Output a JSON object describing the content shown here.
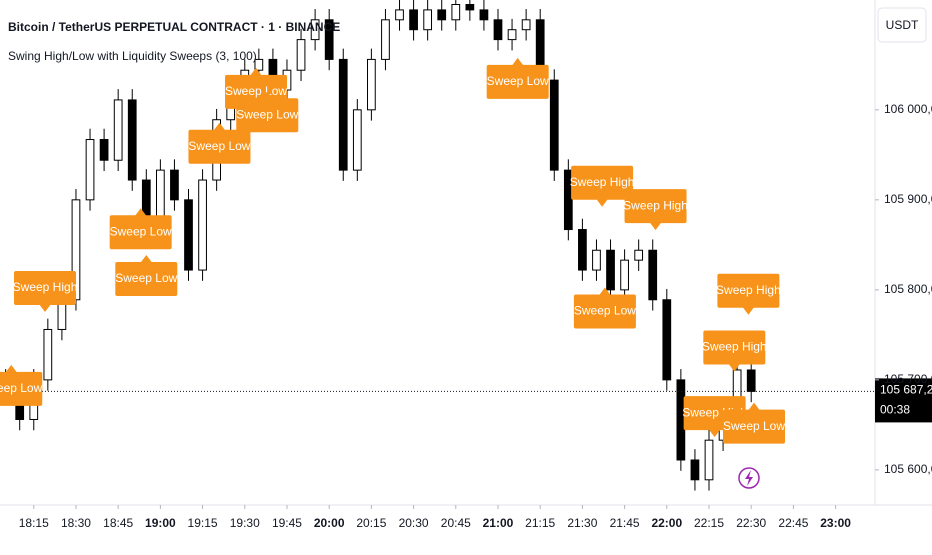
{
  "chart_data": {
    "type": "candlestick",
    "title": "Bitcoin / TetherUS PERPETUAL CONTRACT · 1 · BINANCE",
    "subtitle": "Swing High/Low with Liquidity Sweeps (3, 100)",
    "currency": "USDT",
    "x": [
      "18:05",
      "18:10",
      "18:15",
      "18:20",
      "18:25",
      "18:30",
      "18:35",
      "18:40",
      "18:45",
      "18:50",
      "18:55",
      "19:00",
      "19:05",
      "19:10",
      "19:15",
      "19:20",
      "19:25",
      "19:30",
      "19:35",
      "19:40",
      "19:45",
      "19:50",
      "19:55",
      "20:00",
      "20:05",
      "20:10",
      "20:15",
      "20:20",
      "20:25",
      "20:30",
      "20:35",
      "20:40",
      "20:45",
      "20:50",
      "20:55",
      "21:00",
      "21:05",
      "21:10",
      "21:15",
      "21:20",
      "21:25",
      "21:30",
      "21:35",
      "21:40",
      "21:45",
      "21:50",
      "21:55",
      "22:00",
      "22:05",
      "22:10",
      "22:15",
      "22:20",
      "22:25",
      "22:30"
    ],
    "open": [
      105700,
      105689,
      105656,
      105700,
      105756,
      105789,
      105900,
      105967,
      105944,
      106011,
      105922,
      105867,
      105933,
      105900,
      105822,
      105922,
      105989,
      106022,
      106044,
      106056,
      106022,
      106044,
      106078,
      106100,
      106056,
      105933,
      106000,
      106056,
      106100,
      106111,
      106089,
      106111,
      106100,
      106117,
      106111,
      106100,
      106078,
      106089,
      106100,
      106033,
      105933,
      105867,
      105822,
      105844,
      105800,
      105833,
      105844,
      105789,
      105700,
      105611,
      105589,
      105633,
      105656,
      105711
    ],
    "high": [
      105712,
      105701,
      105712,
      105768,
      105801,
      105912,
      105979,
      105979,
      106023,
      106023,
      105934,
      105945,
      105945,
      105912,
      105934,
      106001,
      106034,
      106056,
      106068,
      106068,
      106056,
      106090,
      106112,
      106112,
      106068,
      106012,
      106068,
      106112,
      106123,
      106123,
      106123,
      106123,
      106129,
      106129,
      106123,
      106112,
      106101,
      106112,
      106112,
      106045,
      105945,
      105879,
      105856,
      105856,
      105845,
      105856,
      105856,
      105801,
      105712,
      105623,
      105645,
      105668,
      105723,
      105723
    ],
    "low": [
      105677,
      105644,
      105644,
      105688,
      105744,
      105777,
      105888,
      105932,
      105932,
      105910,
      105855,
      105855,
      105888,
      105810,
      105810,
      105910,
      105977,
      106010,
      106032,
      106010,
      106010,
      106032,
      106066,
      106044,
      105921,
      105921,
      105988,
      106044,
      106088,
      106077,
      106077,
      106088,
      106088,
      106099,
      106088,
      106066,
      106066,
      106077,
      106021,
      105921,
      105855,
      105810,
      105810,
      105788,
      105788,
      105821,
      105777,
      105688,
      105599,
      105577,
      105577,
      105621,
      105644,
      105675.2
    ],
    "close": [
      105689,
      105656,
      105700,
      105756,
      105789,
      105900,
      105967,
      105944,
      106011,
      105922,
      105867,
      105933,
      105900,
      105822,
      105922,
      105989,
      106022,
      106044,
      106056,
      106022,
      106044,
      106078,
      106100,
      106056,
      105933,
      106000,
      106056,
      106100,
      106111,
      106089,
      106111,
      106100,
      106117,
      106111,
      106100,
      106078,
      106089,
      106100,
      106033,
      105933,
      105867,
      105822,
      105844,
      105800,
      105833,
      105844,
      105789,
      105700,
      105611,
      105589,
      105633,
      105656,
      105711,
      105687.2
    ],
    "up_color": "#ffffff",
    "down_color": "#000000",
    "wick_color": "#000000",
    "xlim": [
      "18:03",
      "23:14"
    ],
    "xticks": [
      "18:15",
      "18:30",
      "18:45",
      "19:00",
      "19:15",
      "19:30",
      "19:45",
      "20:00",
      "20:15",
      "20:30",
      "20:45",
      "21:00",
      "21:15",
      "21:30",
      "21:45",
      "22:00",
      "22:15",
      "22:30",
      "22:45",
      "23:00"
    ],
    "ylim": [
      105561,
      106122
    ],
    "yticks": [
      {
        "value": 105600,
        "label": "105 600,0"
      },
      {
        "value": 105700,
        "label": "105 700,0"
      },
      {
        "value": 105800,
        "label": "105 800,0"
      },
      {
        "value": 105900,
        "label": "105 900,0"
      },
      {
        "value": 106000,
        "label": "106 000,0"
      }
    ],
    "last_price": {
      "value": 105687.2,
      "label": "105 687,2"
    },
    "countdown": "00:38",
    "annotation_color": "#f7931a",
    "annotations": [
      {
        "text": "Sweep Low",
        "x": "18:07",
        "y": 105720
      },
      {
        "text": "Sweep High",
        "x": "18:19",
        "y": 105772
      },
      {
        "text": "Sweep Low",
        "x": "18:53",
        "y": 105894
      },
      {
        "text": "Sweep Low",
        "x": "18:55",
        "y": 105842
      },
      {
        "text": "Sweep Low",
        "x": "19:21",
        "y": 105989
      },
      {
        "text": "Sweep Low",
        "x": "19:34",
        "y": 106050
      },
      {
        "text": "Sweep Low",
        "x": "19:38",
        "y": 106024
      },
      {
        "text": "Sweep Low",
        "x": "21:07",
        "y": 106061
      },
      {
        "text": "Sweep High",
        "x": "21:37",
        "y": 105889
      },
      {
        "text": "Sweep High",
        "x": "21:56",
        "y": 105863
      },
      {
        "text": "Sweep Low",
        "x": "21:38",
        "y": 105806
      },
      {
        "text": "Sweep High",
        "x": "22:17",
        "y": 105633
      },
      {
        "text": "Sweep High",
        "x": "22:24",
        "y": 105706
      },
      {
        "text": "Sweep High",
        "x": "22:29",
        "y": 105769
      },
      {
        "text": "Sweep Low",
        "x": "22:31",
        "y": 105678
      }
    ]
  }
}
